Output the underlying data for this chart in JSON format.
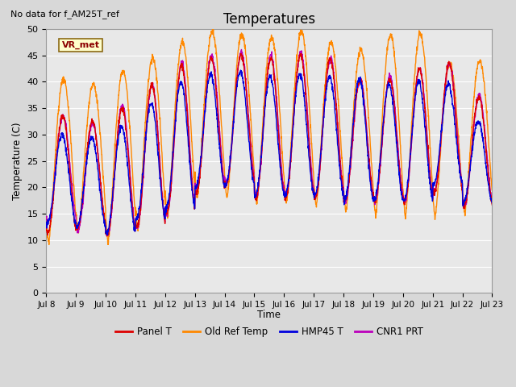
{
  "title": "Temperatures",
  "ylabel": "Temperature (C)",
  "xlabel": "Time",
  "annotation_text": "No data for f_AM25T_ref",
  "vr_label": "VR_met",
  "ylim": [
    0,
    50
  ],
  "yticks": [
    0,
    5,
    10,
    15,
    20,
    25,
    30,
    35,
    40,
    45,
    50
  ],
  "xtick_labels": [
    "Jul 8",
    "Jul 9",
    "Jul 10",
    "Jul 11",
    "Jul 12",
    "Jul 13",
    "Jul 14",
    "Jul 15",
    "Jul 16",
    "Jul 17",
    "Jul 18",
    "Jul 19",
    "Jul 20",
    "Jul 21",
    "Jul 22",
    "Jul 23"
  ],
  "line_colors": {
    "panel_t": "#dd0000",
    "old_ref": "#ff8800",
    "hmp45": "#0000dd",
    "cnr1": "#bb00bb"
  },
  "legend_labels": [
    "Panel T",
    "Old Ref Temp",
    "HMP45 T",
    "CNR1 PRT"
  ],
  "bg_color": "#e8e8e8",
  "grid_color": "#ffffff"
}
